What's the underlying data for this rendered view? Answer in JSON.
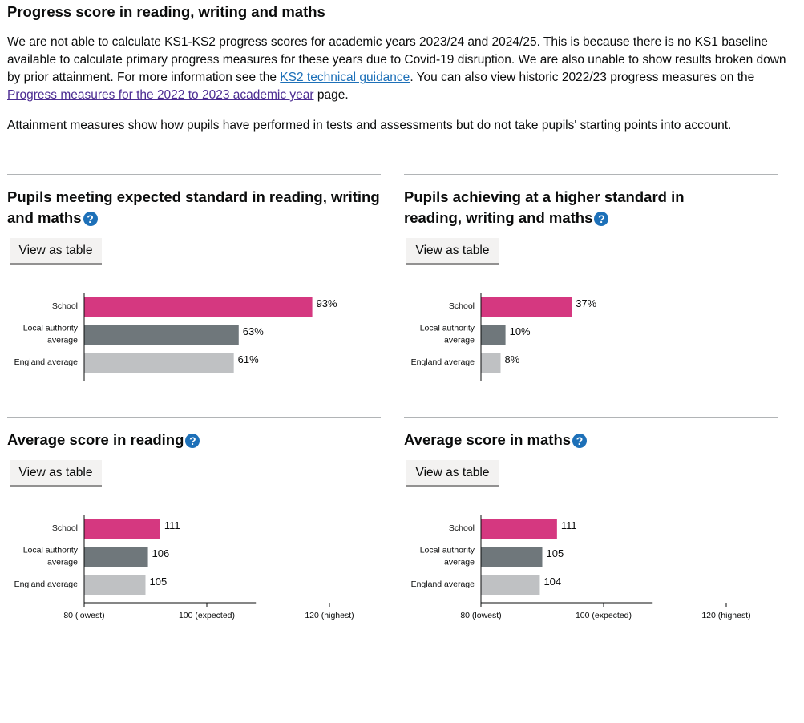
{
  "section": {
    "title": "Progress score in reading, writing and maths",
    "intro_part1": "We are not able to calculate KS1-KS2 progress scores for academic years 2023/24 and 2024/25. This is because there is no KS1 baseline available to calculate primary progress measures for these years due to Covid-19 disruption. We are also unable to show results broken down by prior attainment. For more information see the ",
    "intro_link1": "KS2 technical guidance",
    "intro_part2": ". You can also view historic 2022/23 progress measures on the ",
    "intro_link2": "Progress measures for the 2022 to 2023 academic year",
    "intro_part3": " page.",
    "attainment_note": "Attainment measures show how pupils have performed in tests and assessments but do not take pupils' starting points into account."
  },
  "colors": {
    "school": "#d53880",
    "local_authority": "#6f777b",
    "england": "#bfc1c3",
    "link": "#1d70b8",
    "link_visited": "#4c2c92",
    "help_icon": "#1d70b8"
  },
  "panels": [
    {
      "title": "Pupils meeting expected standard in reading, writing and maths",
      "help_icon": "question-circle-icon",
      "button_label": "View as table"
    },
    {
      "title": "Pupils achieving at a higher standard in reading, writing and maths",
      "help_icon": "question-circle-icon",
      "button_label": "View as table"
    },
    {
      "title": "Average score in reading",
      "help_icon": "question-circle-icon",
      "button_label": "View as table"
    },
    {
      "title": "Average score in maths",
      "help_icon": "question-circle-icon",
      "button_label": "View as table"
    }
  ],
  "chart_data": [
    {
      "type": "bar",
      "orientation": "horizontal",
      "categories": [
        "School",
        "Local authority average",
        "England average"
      ],
      "values": [
        93,
        63,
        61
      ],
      "value_labels": [
        "93%",
        "63%",
        "61%"
      ],
      "xlim": [
        0,
        100
      ],
      "grid": false
    },
    {
      "type": "bar",
      "orientation": "horizontal",
      "categories": [
        "School",
        "Local authority average",
        "England average"
      ],
      "values": [
        37,
        10,
        8
      ],
      "value_labels": [
        "37%",
        "10%",
        "8%"
      ],
      "xlim": [
        0,
        100
      ],
      "grid": false
    },
    {
      "type": "bar",
      "orientation": "horizontal",
      "categories": [
        "School",
        "Local authority average",
        "England average"
      ],
      "values": [
        111,
        106,
        105
      ],
      "value_labels": [
        "111",
        "106",
        "105"
      ],
      "xlim": [
        80,
        120
      ],
      "ticks": [
        80,
        100,
        120
      ],
      "tick_labels": [
        "80 (lowest)",
        "100 (expected)",
        "120 (highest)"
      ],
      "grid": false
    },
    {
      "type": "bar",
      "orientation": "horizontal",
      "categories": [
        "School",
        "Local authority average",
        "England average"
      ],
      "values": [
        111,
        105,
        104
      ],
      "value_labels": [
        "111",
        "105",
        "104"
      ],
      "xlim": [
        80,
        120
      ],
      "ticks": [
        80,
        100,
        120
      ],
      "tick_labels": [
        "80 (lowest)",
        "100 (expected)",
        "120 (highest)"
      ],
      "grid": false
    }
  ]
}
